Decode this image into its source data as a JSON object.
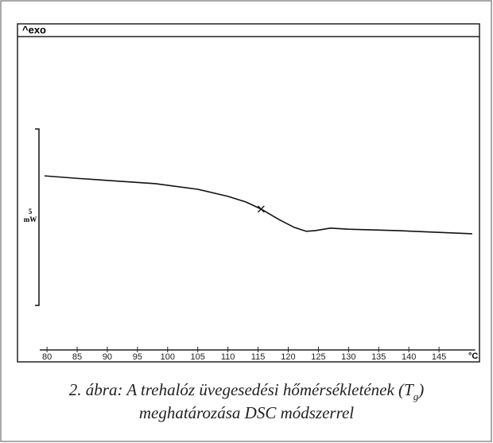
{
  "chart_data": {
    "type": "line",
    "header": "^exo",
    "x_label": "°C",
    "x": [
      79.6,
      85,
      98,
      105,
      110,
      113,
      115.5,
      118.5,
      121,
      123,
      124.5,
      127,
      130,
      138,
      150.5
    ],
    "series": [
      {
        "name": "DSC",
        "color": "#111111",
        "values": [
          4.66,
          4.59,
          4.44,
          4.28,
          4.08,
          3.92,
          3.72,
          3.42,
          3.2,
          3.09,
          3.11,
          3.18,
          3.15,
          3.11,
          3.02
        ]
      }
    ],
    "marker": {
      "x": 115.5,
      "y": 3.72
    },
    "scale_bar": {
      "from": 0.99,
      "value": 5,
      "label": "5",
      "unit": "mW"
    },
    "xlim": [
      78.8,
      151
    ],
    "xticks": [
      80,
      85,
      90,
      95,
      100,
      105,
      110,
      115,
      120,
      125,
      130,
      135,
      140,
      145
    ],
    "ylim": [
      0,
      8.56
    ]
  },
  "caption": {
    "lines": [
      [
        "2. ábra: A trehalóz üvegesedési hőmérsékletének (T",
        "g",
        ")"
      ],
      [
        "meghatározása DSC módszerrel"
      ]
    ]
  }
}
